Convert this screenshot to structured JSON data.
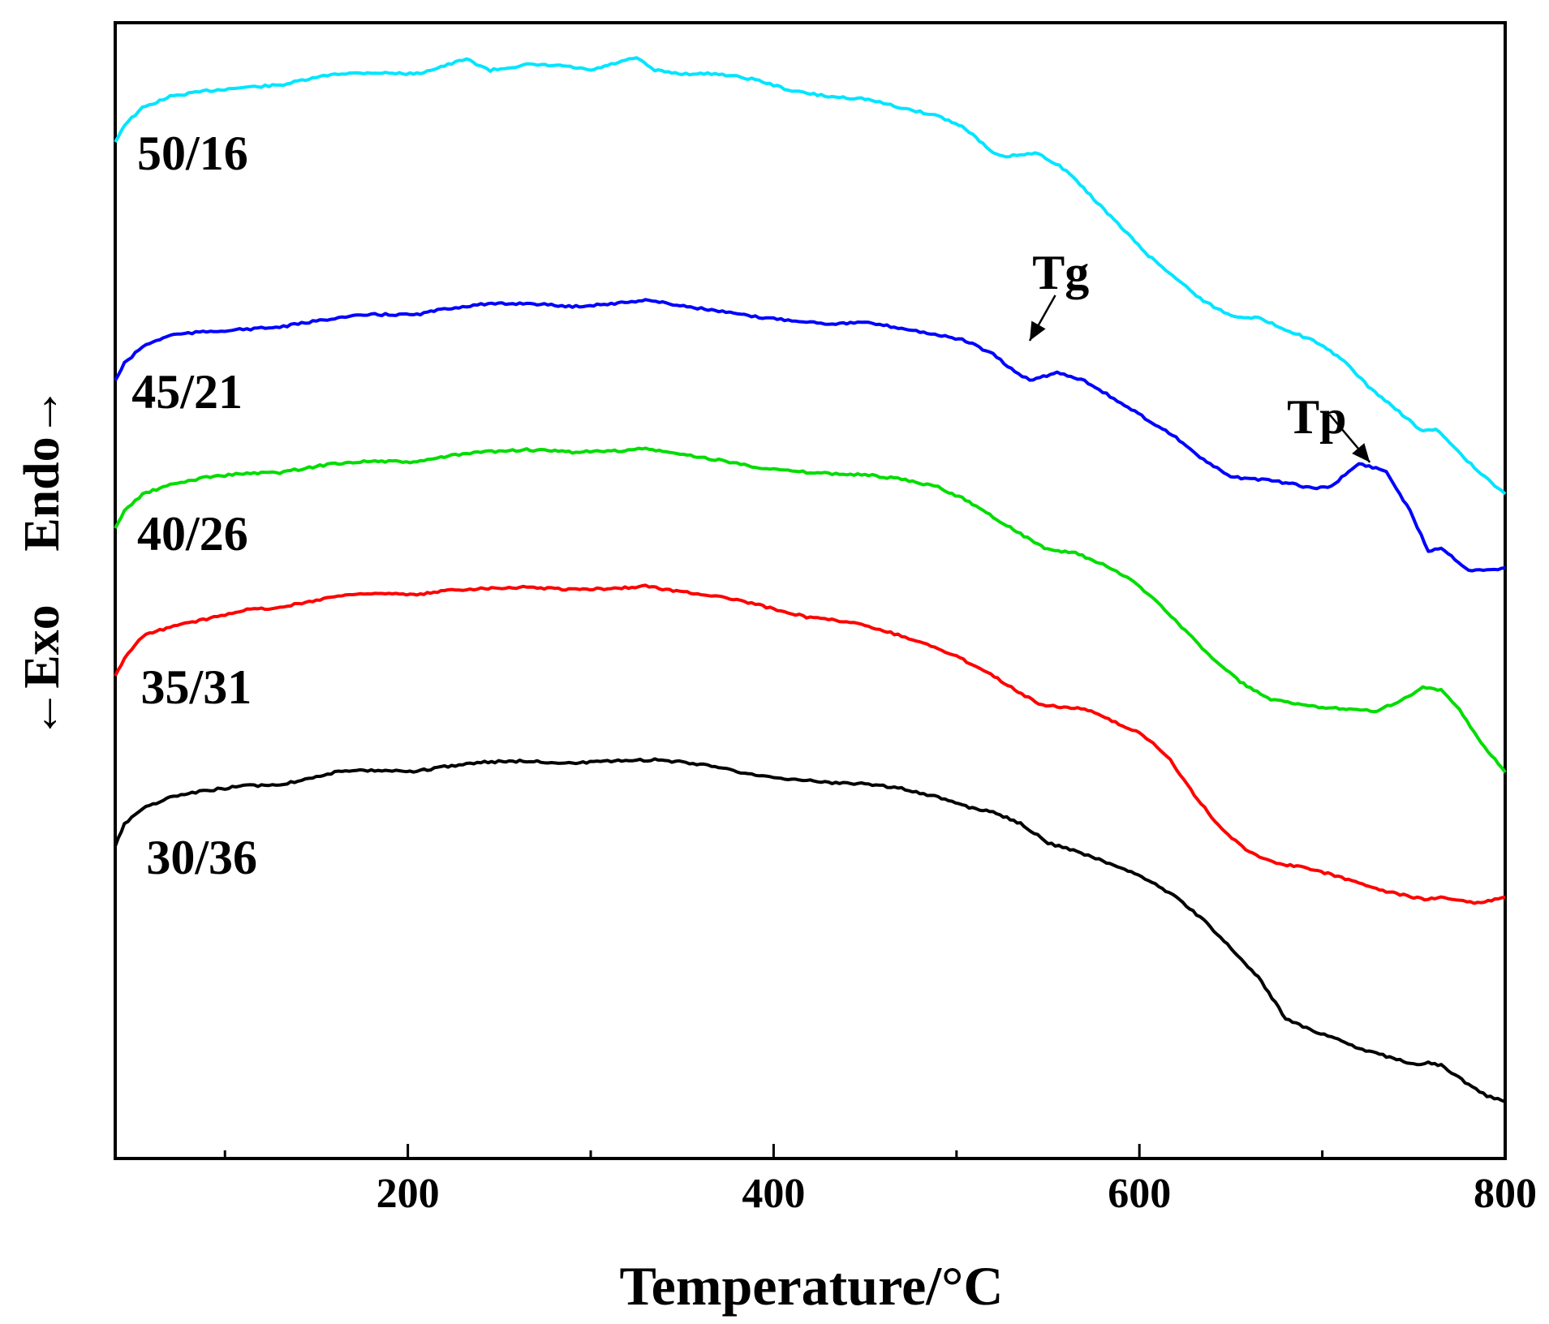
{
  "chart_data": {
    "type": "line",
    "title": "",
    "xlabel": "Temperature/°C",
    "ylabel": "←Exo    Endo→",
    "ylabel_parts": {
      "exo": "←Exo",
      "endo": "Endo→"
    },
    "xlim": [
      40,
      800
    ],
    "ylim": [
      0,
      100
    ],
    "xticks": [
      200,
      400,
      600,
      800
    ],
    "xticks_minor": [
      100,
      300,
      500,
      700
    ],
    "grid": false,
    "series": [
      {
        "name": "50/16",
        "color": "#00e5ff",
        "label_x": 52,
        "label_y": 88.5,
        "x": [
          40,
          45,
          55,
          70,
          90,
          110,
          130,
          160,
          180,
          205,
          220,
          232,
          245,
          265,
          285,
          300,
          315,
          325,
          335,
          350,
          370,
          390,
          410,
          430,
          450,
          470,
          490,
          505,
          520,
          525,
          545,
          560,
          575,
          590,
          605,
          620,
          635,
          650,
          665,
          680,
          695,
          710,
          725,
          740,
          755,
          762,
          770,
          785,
          800
        ],
        "y": [
          89.5,
          91,
          92.5,
          93.5,
          94,
          94.3,
          94.5,
          95.5,
          95.6,
          95.5,
          96.2,
          96.8,
          95.8,
          96.3,
          96.2,
          95.8,
          96.5,
          96.9,
          95.8,
          95.5,
          95.5,
          95,
          94,
          93.5,
          93.3,
          92.5,
          91.8,
          90.7,
          88.5,
          88.2,
          88.5,
          87,
          84.5,
          82,
          79.5,
          77.5,
          75.5,
          74.2,
          74,
          73,
          72,
          70.5,
          68,
          66,
          64,
          64.2,
          63,
          60.5,
          58.5
        ]
      },
      {
        "name": "45/21",
        "color": "#0000ff",
        "label_x": 49,
        "label_y": 67.5,
        "x": [
          40,
          45,
          55,
          70,
          90,
          110,
          130,
          160,
          180,
          205,
          220,
          240,
          265,
          290,
          315,
          330,
          345,
          370,
          390,
          410,
          430,
          450,
          470,
          490,
          505,
          520,
          530,
          540,
          555,
          570,
          590,
          605,
          620,
          635,
          650,
          665,
          680,
          695,
          705,
          720,
          735,
          748,
          758,
          765,
          780,
          790,
          800
        ],
        "y": [
          68.5,
          70,
          71.5,
          72.5,
          72.8,
          73,
          73.2,
          74,
          74.3,
          74.3,
          74.8,
          75.2,
          75.3,
          75,
          75.3,
          75.6,
          75.2,
          74.6,
          74.1,
          73.8,
          73.5,
          73.6,
          73.1,
          72.5,
          72,
          70.8,
          69.5,
          68.5,
          69.2,
          68.5,
          66.5,
          65,
          63.5,
          61.5,
          60,
          59.8,
          59.5,
          59,
          59.2,
          61.2,
          60.5,
          57,
          53.5,
          53.8,
          51.8,
          51.8,
          52
        ]
      },
      {
        "name": "40/26",
        "color": "#00dd00",
        "label_x": 52,
        "label_y": 55,
        "x": [
          40,
          45,
          55,
          70,
          90,
          110,
          130,
          160,
          180,
          205,
          220,
          240,
          265,
          290,
          315,
          330,
          345,
          370,
          390,
          410,
          430,
          450,
          470,
          490,
          505,
          520,
          535,
          550,
          565,
          580,
          595,
          610,
          625,
          640,
          655,
          670,
          685,
          700,
          715,
          730,
          745,
          755,
          765,
          775,
          785,
          800
        ],
        "y": [
          55.5,
          57,
          58.5,
          59.3,
          60,
          60.3,
          60.4,
          61.2,
          61.4,
          61.3,
          61.8,
          62.2,
          62.4,
          62.2,
          62.3,
          62.5,
          62.1,
          61.5,
          60.9,
          60.5,
          60.3,
          60.2,
          59.8,
          59.1,
          58,
          56.5,
          55,
          53.6,
          53.3,
          52.3,
          51,
          49,
          46.5,
          44,
          42,
          40.5,
          40,
          39.7,
          39.6,
          39.4,
          40.5,
          41.5,
          41.2,
          39.5,
          37,
          34
        ]
      },
      {
        "name": "35/31",
        "color": "#ff0000",
        "label_x": 54,
        "label_y": 41.5,
        "x": [
          40,
          45,
          55,
          70,
          90,
          110,
          130,
          160,
          180,
          205,
          220,
          240,
          265,
          290,
          315,
          330,
          345,
          370,
          390,
          410,
          420,
          440,
          460,
          480,
          500,
          515,
          530,
          545,
          555,
          570,
          585,
          600,
          615,
          630,
          645,
          660,
          675,
          690,
          705,
          720,
          735,
          750,
          758,
          765,
          785,
          800
        ],
        "y": [
          42.5,
          44,
          46,
          46.8,
          47.5,
          48.3,
          48.5,
          49.5,
          49.8,
          49.6,
          50,
          50.2,
          50.3,
          50.1,
          50.2,
          50.4,
          50,
          49.5,
          48.8,
          48,
          47.6,
          47.3,
          46.5,
          45.5,
          44.2,
          43,
          41.5,
          40,
          39.8,
          39.6,
          38.5,
          37.5,
          35.5,
          32,
          29,
          27,
          26,
          25.6,
          25,
          24.3,
          23.5,
          23,
          22.8,
          23,
          22.5,
          23
        ]
      },
      {
        "name": "30/36",
        "color": "#000000",
        "label_x": 57,
        "label_y": 26.5,
        "x": [
          40,
          45,
          55,
          70,
          90,
          110,
          130,
          160,
          180,
          205,
          220,
          240,
          265,
          290,
          315,
          335,
          350,
          370,
          390,
          410,
          430,
          450,
          470,
          490,
          505,
          520,
          535,
          550,
          570,
          590,
          605,
          620,
          635,
          650,
          665,
          680,
          695,
          705,
          720,
          735,
          750,
          758,
          765,
          780,
          790,
          800
        ],
        "y": [
          27.5,
          29.5,
          30.8,
          31.8,
          32.4,
          32.8,
          32.9,
          34,
          34.2,
          34.1,
          34.5,
          34.9,
          35,
          34.8,
          35,
          35.1,
          34.9,
          34.5,
          33.7,
          33.4,
          33.1,
          33,
          32.6,
          31.8,
          31,
          30.5,
          29.5,
          27.8,
          26.8,
          25.6,
          24.5,
          23,
          21,
          18.5,
          16,
          12.3,
          11.2,
          10.7,
          9.7,
          9,
          8.3,
          8.4,
          8.2,
          6.5,
          5.5,
          5
        ]
      }
    ],
    "annotations": [
      {
        "text": "Tg",
        "text_x": 557,
        "text_y": 78,
        "arrow_from": [
          554,
          76
        ],
        "arrow_to": [
          540,
          72
        ]
      },
      {
        "text": "Tp",
        "text_x": 697,
        "text_y": 65.3,
        "arrow_from": [
          704,
          65.5
        ],
        "arrow_to": [
          726,
          61.3
        ]
      }
    ]
  }
}
